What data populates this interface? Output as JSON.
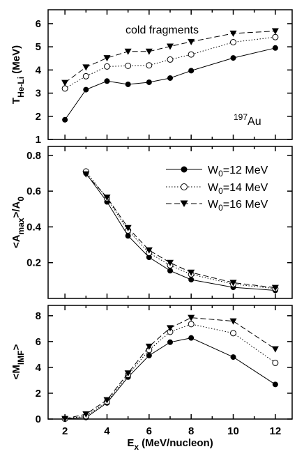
{
  "chart_data": [
    {
      "type": "line",
      "x": [
        2,
        3,
        4,
        5,
        6,
        7,
        8,
        10,
        12
      ],
      "series": [
        {
          "name": "W0=12 MeV",
          "values": [
            1.85,
            3.15,
            3.52,
            3.38,
            3.47,
            3.65,
            3.97,
            4.52,
            4.95
          ]
        },
        {
          "name": "W0=14 MeV",
          "values": [
            3.2,
            3.73,
            4.15,
            4.18,
            4.2,
            4.45,
            4.67,
            5.2,
            5.42
          ]
        },
        {
          "name": "W0=16 MeV",
          "values": [
            3.45,
            4.12,
            4.52,
            4.8,
            4.8,
            5.02,
            5.22,
            5.58,
            5.68
          ]
        }
      ],
      "ylabel_main": "T",
      "ylabel_sub": "He-Li",
      "ylabel_unit": " (MeV)",
      "ylim": [
        1,
        6.6
      ],
      "yticks": [
        1,
        2,
        3,
        4,
        5,
        6
      ],
      "annotation": "cold fragments",
      "nucleus_mass": "197",
      "nucleus_symbol": "Au"
    },
    {
      "type": "line",
      "x": [
        2,
        3,
        4,
        5,
        6,
        7,
        8,
        10,
        12
      ],
      "series": [
        {
          "name": "W0=12 MeV",
          "values": [
            null,
            0.7,
            0.54,
            0.35,
            0.23,
            0.155,
            0.105,
            0.062,
            0.045
          ]
        },
        {
          "name": "W0=14 MeV",
          "values": [
            null,
            0.71,
            0.56,
            0.38,
            0.255,
            0.185,
            0.135,
            0.08,
            0.055
          ]
        },
        {
          "name": "W0=16 MeV",
          "values": [
            null,
            0.695,
            0.565,
            0.395,
            0.27,
            0.2,
            0.145,
            0.088,
            0.06
          ]
        }
      ],
      "ylabel_parts": [
        "<A",
        "max",
        ">/A",
        "0"
      ],
      "ylim": [
        0,
        0.85
      ],
      "yticks": [
        0.2,
        0.4,
        0.6,
        0.8
      ],
      "legend": {
        "position": "top-right",
        "entries": [
          {
            "prefix": "W",
            "sub": "0",
            "suffix": "=12 MeV"
          },
          {
            "prefix": "W",
            "sub": "0",
            "suffix": "=14 MeV"
          },
          {
            "prefix": "W",
            "sub": "0",
            "suffix": "=16 MeV"
          }
        ]
      }
    },
    {
      "type": "line",
      "x": [
        2,
        3,
        4,
        5,
        6,
        7,
        8,
        10,
        12
      ],
      "series": [
        {
          "name": "W0=12 MeV",
          "values": [
            0.02,
            0.12,
            1.25,
            3.25,
            4.92,
            5.95,
            6.28,
            4.8,
            2.68
          ]
        },
        {
          "name": "W0=14 MeV",
          "values": [
            0.02,
            0.22,
            1.35,
            3.42,
            5.35,
            6.75,
            7.35,
            6.65,
            4.35
          ]
        },
        {
          "name": "W0=16 MeV",
          "values": [
            0.02,
            0.38,
            1.48,
            3.55,
            5.62,
            7.05,
            7.85,
            7.58,
            5.42
          ]
        }
      ],
      "ylabel_parts": [
        "<M",
        "IMF",
        ">"
      ],
      "ylim": [
        0,
        8.8
      ],
      "yticks": [
        0,
        2,
        4,
        6,
        8
      ],
      "xlabel_main": "E",
      "xlabel_sub": "x",
      "xlabel_unit": " (MeV/nucleon)",
      "xticks": [
        2,
        4,
        6,
        8,
        10,
        12
      ],
      "xlim": [
        1.2,
        12.8
      ]
    }
  ],
  "style": {
    "line_color": "#000000",
    "series_dash": [
      "",
      "1.5,2.5",
      "8,4"
    ],
    "marker_shapes": [
      "filled-circle",
      "open-circle",
      "filled-triangle-down"
    ]
  }
}
